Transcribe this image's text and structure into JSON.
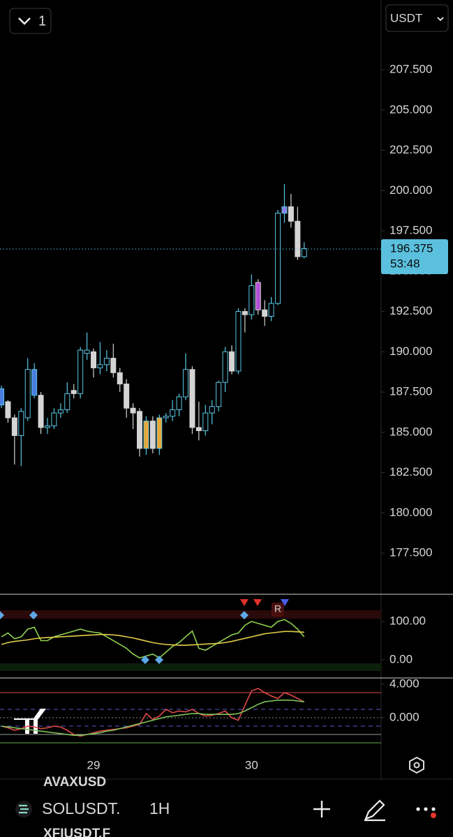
{
  "toolbar": {
    "layout_count": "1",
    "currency": "USDT"
  },
  "chart_data": {
    "type": "candlestick",
    "categories": [
      null,
      null,
      null,
      null,
      null,
      null,
      null,
      null,
      null,
      null,
      null,
      null,
      null,
      null,
      "29",
      null,
      null,
      null,
      null,
      null,
      null,
      null,
      null,
      null,
      null,
      null,
      null,
      null,
      null,
      null,
      null,
      null,
      null,
      null,
      null,
      null,
      null,
      null,
      "30",
      null,
      null,
      null,
      null,
      null,
      null,
      null,
      null
    ],
    "open": [
      186.7,
      186.9,
      185.9,
      184.8,
      185.9,
      187.3,
      187.3,
      185.3,
      185.4,
      186.2,
      186.4,
      187.6,
      187.4,
      189.9,
      190.0,
      189.0,
      189.2,
      189.6,
      188.7,
      188.0,
      186.5,
      186.3,
      184.0,
      185.7,
      184.0,
      185.9,
      186.0,
      186.4,
      187.2,
      188.9,
      185.3,
      185.1,
      186.2,
      186.6,
      188.1,
      190.0,
      188.8,
      192.5,
      192.3,
      194.3,
      192.6,
      192.2,
      193.0,
      198.6,
      199.0,
      198.1,
      195.9
    ],
    "close": [
      187.7,
      185.9,
      184.8,
      186.3,
      188.9,
      188.9,
      185.3,
      185.4,
      186.2,
      186.4,
      187.4,
      187.4,
      190.1,
      190.1,
      189.0,
      189.2,
      189.6,
      188.7,
      188.0,
      186.5,
      186.2,
      184.0,
      185.7,
      184.0,
      185.9,
      186.0,
      186.4,
      187.2,
      188.9,
      185.3,
      185.1,
      186.2,
      186.6,
      188.1,
      190.0,
      188.8,
      192.5,
      192.3,
      194.1,
      192.6,
      192.2,
      193.0,
      198.6,
      199.0,
      198.1,
      195.9,
      196.4
    ],
    "high": [
      187.9,
      187.0,
      186.1,
      186.5,
      189.6,
      189.3,
      187.5,
      185.9,
      186.5,
      186.8,
      188.1,
      188.0,
      190.3,
      191.2,
      190.2,
      190.6,
      190.1,
      190.5,
      189.0,
      188.3,
      186.8,
      186.5,
      186.0,
      186.0,
      186.1,
      186.2,
      187.0,
      187.4,
      189.9,
      189.1,
      186.9,
      186.7,
      187.0,
      188.2,
      190.3,
      190.4,
      192.7,
      192.7,
      194.8,
      194.5,
      193.2,
      193.4,
      198.8,
      200.4,
      199.8,
      199.0,
      196.8
    ],
    "low": [
      186.5,
      185.6,
      183.0,
      182.9,
      185.7,
      187.1,
      184.9,
      184.9,
      185.2,
      185.9,
      186.2,
      187.1,
      187.1,
      189.5,
      188.4,
      188.6,
      188.8,
      188.4,
      187.5,
      185.9,
      185.2,
      183.5,
      183.6,
      183.7,
      183.6,
      185.6,
      185.7,
      186.0,
      187.0,
      184.9,
      184.5,
      184.8,
      185.5,
      186.3,
      187.5,
      188.6,
      188.6,
      191.2,
      192.0,
      192.3,
      191.6,
      191.9,
      192.9,
      198.0,
      197.7,
      195.7,
      195.8
    ],
    "highlight": [
      "#4a7de0",
      null,
      null,
      null,
      null,
      "#4a7de0",
      null,
      null,
      null,
      null,
      null,
      null,
      null,
      null,
      null,
      null,
      null,
      null,
      null,
      null,
      null,
      null,
      "#e8a93a",
      null,
      "#e8a93a",
      null,
      null,
      null,
      null,
      null,
      null,
      null,
      null,
      null,
      null,
      null,
      null,
      null,
      null,
      "#b44fd6",
      null,
      null,
      null,
      "#8a7ee8",
      null,
      null,
      null
    ],
    "up_color": "#5ac8e8",
    "down_color": "#d4d4d4",
    "ylim": [
      174.95,
      211.83
    ],
    "yticks": [
      {
        "value": 177.5,
        "label": "177.500"
      },
      {
        "value": 180,
        "label": "180.000"
      },
      {
        "value": 182.5,
        "label": "182.500"
      },
      {
        "value": 185,
        "label": "185.000"
      },
      {
        "value": 187.5,
        "label": "187.500"
      },
      {
        "value": 190,
        "label": "190.000"
      },
      {
        "value": 192.5,
        "label": "192.500"
      },
      {
        "value": 195,
        "label": "195.000"
      },
      {
        "value": 197.5,
        "label": "197.500"
      },
      {
        "value": 200,
        "label": "200.000"
      },
      {
        "value": 202.5,
        "label": "202.500"
      },
      {
        "value": 205,
        "label": "205.000"
      },
      {
        "value": 207.5,
        "label": "207.500"
      }
    ],
    "last_price": {
      "value": 196.375,
      "label": "196.375",
      "countdown": "53:48",
      "color": "#5bc0de"
    },
    "panes": [
      {
        "ylim": [
          -47.3,
          170.9
        ],
        "yticks": [
          {
            "value": 100,
            "label": "100.00"
          },
          {
            "value": 0,
            "label": "0.00"
          }
        ],
        "marker": "R",
        "series": [
          {
            "color": "#8fd14f",
            "values": [
              60,
              70,
              55,
              60,
              80,
              85,
              50,
              50,
              60,
              65,
              70,
              75,
              80,
              75,
              72,
              70,
              60,
              50,
              40,
              30,
              15,
              5,
              10,
              15,
              5,
              20,
              35,
              45,
              60,
              75,
              30,
              25,
              35,
              45,
              55,
              65,
              70,
              90,
              100,
              95,
              90,
              85,
              100,
              105,
              95,
              80,
              60
            ]
          },
          {
            "color": "#e3cf4a",
            "values": [
              40,
              45,
              48,
              50,
              52,
              55,
              57,
              58,
              59,
              60,
              61,
              62,
              63,
              64,
              65,
              66,
              66,
              65,
              63,
              60,
              57,
              53,
              49,
              45,
              42,
              40,
              39,
              38,
              38,
              39,
              40,
              41,
              42,
              43,
              45,
              48,
              52,
              56,
              60,
              64,
              68,
              70,
              72,
              74,
              74,
              73,
              72
            ]
          }
        ]
      },
      {
        "ylim": [
          -7.33,
          4.75
        ],
        "yticks": [
          {
            "value": 4,
            "label": "4.000"
          },
          {
            "value": 0,
            "label": "0.000"
          }
        ],
        "series": [
          {
            "color": "#e04a4a",
            "values": [
              -1,
              -1.2,
              -1.5,
              -1.3,
              -1.0,
              -1.1,
              -1.3,
              -1.2,
              -1.0,
              -1.1,
              -1.5,
              -2,
              -2.2,
              -2.0,
              -1.8,
              -1.6,
              -1.5,
              -1.4,
              -1.3,
              -1.2,
              -1.0,
              -0.8,
              0.5,
              -0.2,
              0.2,
              1.0,
              0.6,
              0.8,
              0.7,
              1.0,
              0.5,
              0.2,
              0.3,
              0.5,
              0.8,
              0.0,
              -0.3,
              1.5,
              3.2,
              3.5,
              3.0,
              2.6,
              2.3,
              3.0,
              2.7,
              2.3,
              1.9
            ]
          },
          {
            "color": "#7fc25a",
            "values": [
              -1.0,
              -1.1,
              -1.2,
              -1.3,
              -1.4,
              -1.5,
              -1.6,
              -1.7,
              -1.8,
              -1.9,
              -2,
              -2.1,
              -2.1,
              -2.0,
              -1.9,
              -1.8,
              -1.6,
              -1.5,
              -1.3,
              -1.1,
              -0.9,
              -0.7,
              -0.5,
              -0.3,
              -0.1,
              0.1,
              0.2,
              0.3,
              0.4,
              0.5,
              0.5,
              0.4,
              0.4,
              0.4,
              0.4,
              0.4,
              0.5,
              0.8,
              1.2,
              1.6,
              1.9,
              2.0,
              2.1,
              2.1,
              2.1,
              2.0,
              1.9
            ]
          }
        ]
      }
    ]
  },
  "bottom_bar": {
    "symbol": "SOLUSDT.",
    "interval": "1H",
    "behind_above": "AVAXUSD",
    "behind_below": "XFIUSDT.F"
  }
}
